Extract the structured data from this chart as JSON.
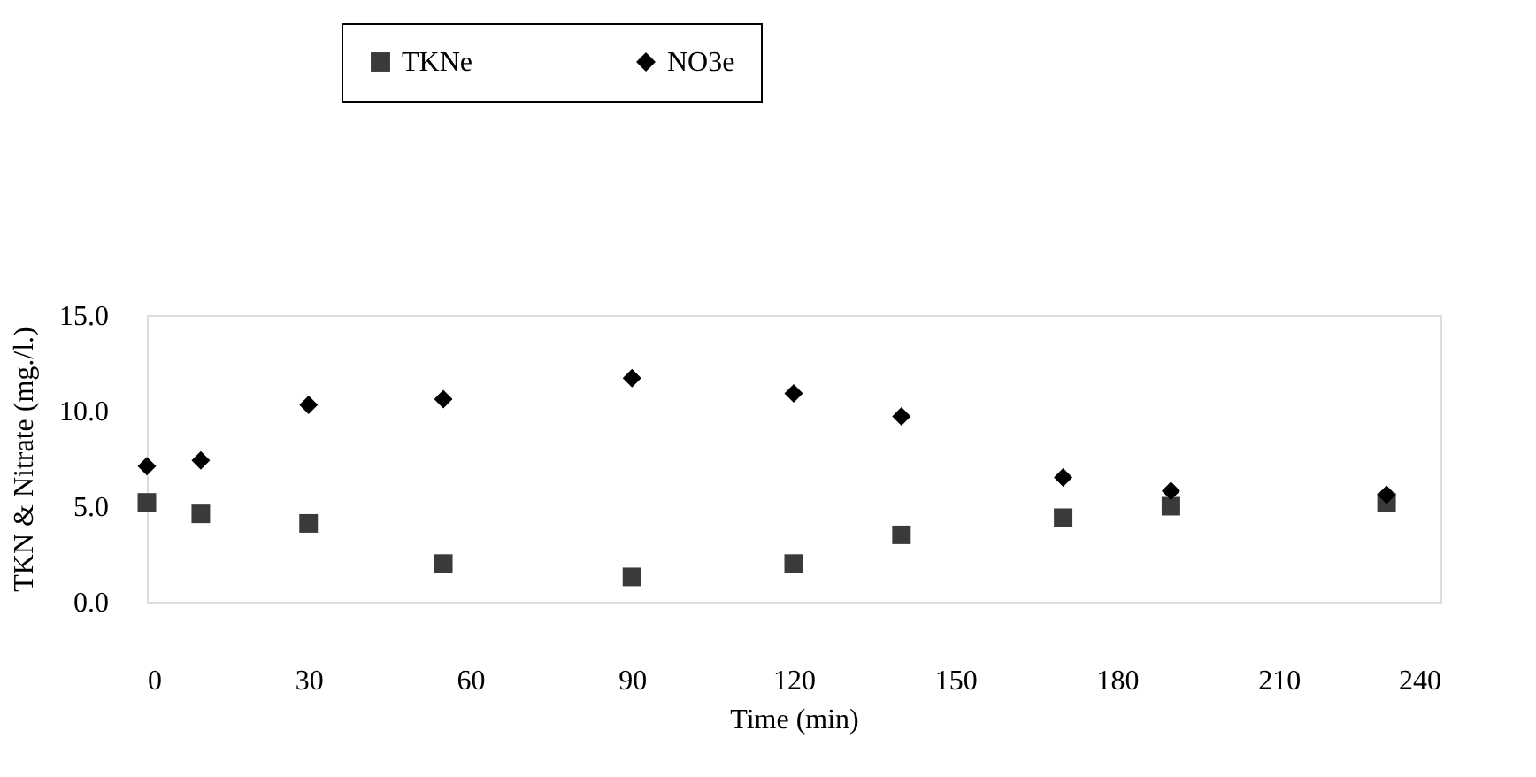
{
  "chart_data": {
    "type": "scatter",
    "xlabel": "Time (min)",
    "ylabel": "TKN & Nitrate (mg./l.)",
    "xlim": [
      0,
      240
    ],
    "xticks": [
      0,
      30,
      60,
      90,
      120,
      150,
      180,
      210,
      240
    ],
    "ylim": [
      0,
      15
    ],
    "yticks": [
      {
        "value": 0,
        "label": "0.0"
      },
      {
        "value": 5,
        "label": "5.0"
      },
      {
        "value": 10,
        "label": "10.0"
      },
      {
        "value": 15,
        "label": "15.0"
      }
    ],
    "x": [
      0,
      10,
      30,
      55,
      90,
      120,
      140,
      170,
      190,
      230
    ],
    "series": [
      {
        "name": "TKNe",
        "color": "#3a3a3a",
        "marker": "square",
        "values": [
          5.2,
          4.6,
          4.1,
          2.0,
          1.3,
          2.0,
          3.5,
          4.4,
          5.0,
          5.2
        ]
      },
      {
        "name": "NO3e",
        "color": "#000000",
        "marker": "diamond",
        "values": [
          7.1,
          7.4,
          10.3,
          10.6,
          11.7,
          10.9,
          9.7,
          6.5,
          5.8,
          5.6
        ]
      }
    ],
    "grid": false,
    "legend": "top"
  }
}
